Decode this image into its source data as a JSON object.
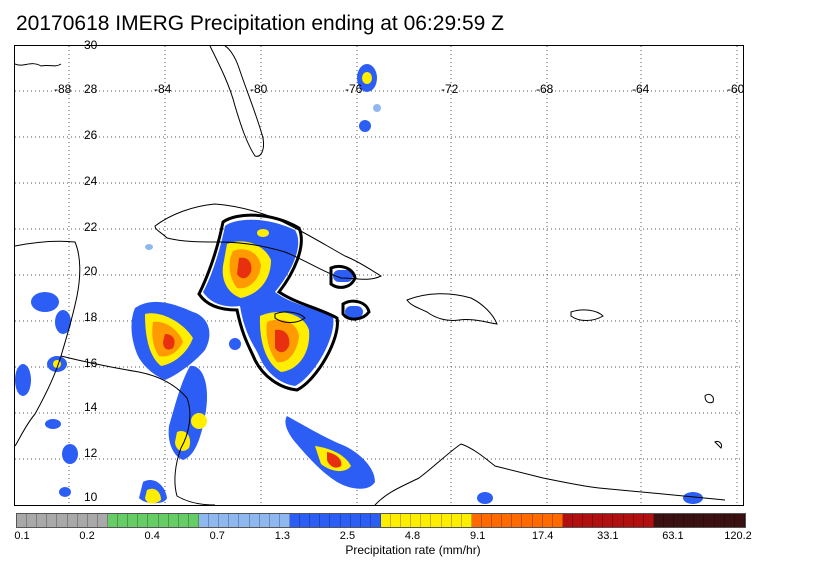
{
  "title": "20170618 IMERG Precipitation ending at 06:29:59 Z",
  "longitude_labels": [
    "-88",
    "-84",
    "-80",
    "-76",
    "-72",
    "-68",
    "-64",
    "-60"
  ],
  "latitude_labels": [
    "30",
    "28",
    "26",
    "24",
    "22",
    "20",
    "18",
    "16",
    "14",
    "12",
    "10"
  ],
  "colorbar": {
    "title": "Precipitation rate (mm/hr)",
    "tick_labels": [
      "0.1",
      "0.2",
      "0.4",
      "0.7",
      "1.3",
      "2.5",
      "4.8",
      "9.1",
      "17.4",
      "33.1",
      "63.1",
      "120.2"
    ],
    "colors": [
      "#a9a9a9",
      "#a9a9a9",
      "#a9a9a9",
      "#a9a9a9",
      "#a9a9a9",
      "#a9a9a9",
      "#a9a9a9",
      "#a9a9a9",
      "#a9a9a9",
      "#66cc66",
      "#66cc66",
      "#66cc66",
      "#66cc66",
      "#66cc66",
      "#66cc66",
      "#66cc66",
      "#66cc66",
      "#66cc66",
      "#8fb8f0",
      "#8fb8f0",
      "#8fb8f0",
      "#8fb8f0",
      "#8fb8f0",
      "#8fb8f0",
      "#8fb8f0",
      "#8fb8f0",
      "#8fb8f0",
      "#2c5ef5",
      "#2c5ef5",
      "#2c5ef5",
      "#2c5ef5",
      "#2c5ef5",
      "#2c5ef5",
      "#2c5ef5",
      "#2c5ef5",
      "#2c5ef5",
      "#ffee00",
      "#ffee00",
      "#ffee00",
      "#ffee00",
      "#ffee00",
      "#ffee00",
      "#ffee00",
      "#ffee00",
      "#ffee00",
      "#ff6a00",
      "#ff6a00",
      "#ff6a00",
      "#ff6a00",
      "#ff6a00",
      "#ff6a00",
      "#ff6a00",
      "#ff6a00",
      "#ff6a00",
      "#b01010",
      "#b01010",
      "#b01010",
      "#b01010",
      "#b01010",
      "#b01010",
      "#b01010",
      "#b01010",
      "#b01010",
      "#3a1010",
      "#3a1010",
      "#3a1010",
      "#3a1010",
      "#3a1010",
      "#3a1010",
      "#3a1010",
      "#3a1010",
      "#3a1010"
    ]
  },
  "palette": {
    "light_blue": "#8fb8f0",
    "blue": "#2c5ef5",
    "dark_blue": "#1a1ad0",
    "yellow": "#ffee00",
    "orange": "#ff9a00",
    "red": "#e83010"
  }
}
